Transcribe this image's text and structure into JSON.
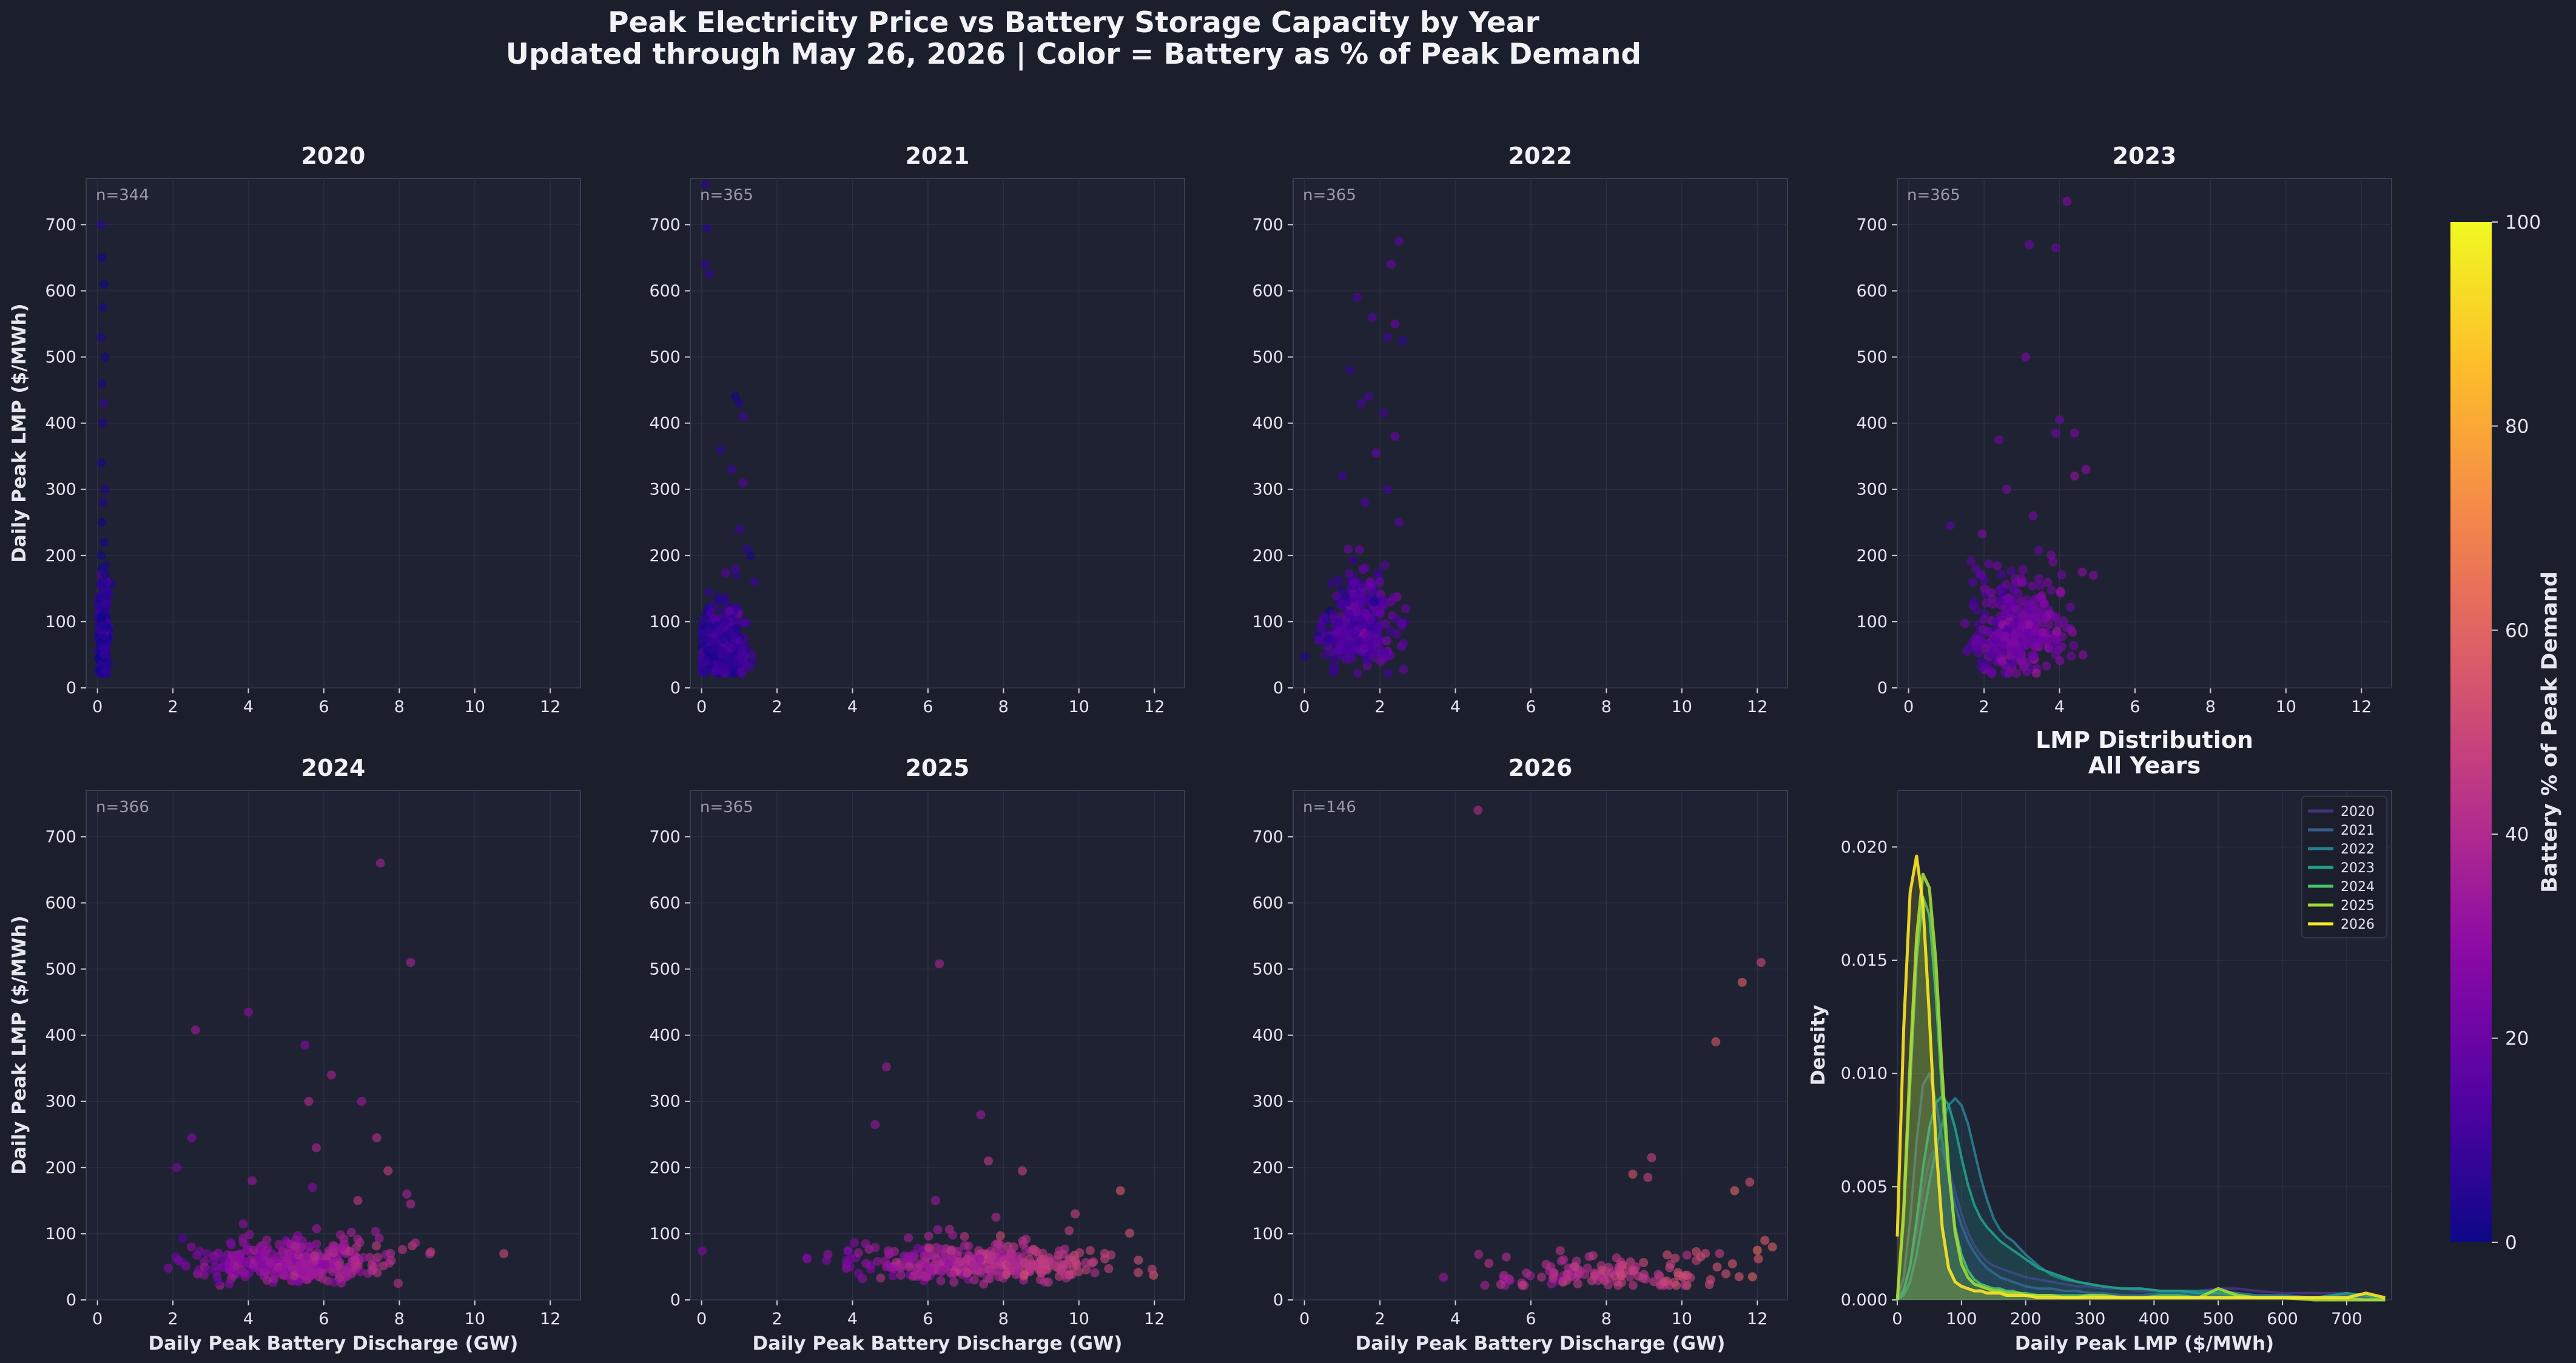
{
  "title": {
    "line1": "Peak Electricity Price vs Battery Storage Capacity by Year",
    "line2": "Updated through May 26, 2026  |  Color = Battery as % of Peak Demand"
  },
  "colors": {
    "background": "#1b1e2b",
    "axes_face": "#1f2233",
    "spine": "#3a3e52",
    "grid": "#2a2e40"
  },
  "chart_data": [
    {
      "type": "scatter",
      "panels": [
        {
          "title": "2020",
          "n_label": "n=344",
          "x_center": 0.15,
          "x_spread": 0.06,
          "y_median": 70,
          "y_spread": 40,
          "pct_center": 5,
          "outliers": [
            [
              0.1,
              700
            ],
            [
              0.12,
              650
            ],
            [
              0.18,
              610
            ],
            [
              0.15,
              575
            ],
            [
              0.1,
              530
            ],
            [
              0.2,
              500
            ],
            [
              0.12,
              460
            ],
            [
              0.16,
              430
            ],
            [
              0.14,
              400
            ],
            [
              0.1,
              340
            ],
            [
              0.2,
              300
            ],
            [
              0.15,
              280
            ],
            [
              0.12,
              250
            ],
            [
              0.18,
              220
            ],
            [
              0.1,
              200
            ],
            [
              0.22,
              185
            ],
            [
              0.15,
              160
            ]
          ]
        },
        {
          "title": "2021",
          "n_label": "n=365",
          "x_center": 0.55,
          "x_spread": 0.3,
          "y_median": 60,
          "y_spread": 30,
          "pct_center": 8,
          "outliers": [
            [
              0.1,
              760
            ],
            [
              0.15,
              695
            ],
            [
              0.1,
              640
            ],
            [
              0.2,
              625
            ],
            [
              0.9,
              440
            ],
            [
              1.0,
              430
            ],
            [
              1.1,
              410
            ],
            [
              0.5,
              360
            ],
            [
              0.8,
              330
            ],
            [
              1.1,
              310
            ],
            [
              1.0,
              240
            ],
            [
              1.2,
              210
            ],
            [
              1.3,
              200
            ],
            [
              0.9,
              180
            ],
            [
              1.4,
              160
            ]
          ]
        },
        {
          "title": "2022",
          "n_label": "n=365",
          "x_center": 1.5,
          "x_spread": 0.45,
          "y_median": 85,
          "y_spread": 40,
          "pct_center": 14,
          "outliers": [
            [
              2.5,
              675
            ],
            [
              2.3,
              640
            ],
            [
              1.4,
              590
            ],
            [
              1.8,
              560
            ],
            [
              2.4,
              550
            ],
            [
              2.2,
              530
            ],
            [
              2.6,
              525
            ],
            [
              1.2,
              480
            ],
            [
              1.7,
              440
            ],
            [
              1.5,
              430
            ],
            [
              2.1,
              415
            ],
            [
              2.4,
              380
            ],
            [
              1.9,
              355
            ],
            [
              1.0,
              320
            ],
            [
              2.2,
              300
            ],
            [
              1.6,
              280
            ],
            [
              2.5,
              250
            ]
          ]
        },
        {
          "title": "2023",
          "n_label": "n=365",
          "x_center": 2.9,
          "x_spread": 0.6,
          "y_median": 85,
          "y_spread": 45,
          "pct_center": 22,
          "outliers": [
            [
              4.2,
              735
            ],
            [
              3.2,
              670
            ],
            [
              3.9,
              665
            ],
            [
              3.1,
              500
            ],
            [
              4.0,
              405
            ],
            [
              4.4,
              385
            ],
            [
              2.4,
              375
            ],
            [
              3.9,
              385
            ],
            [
              4.7,
              330
            ],
            [
              4.4,
              320
            ],
            [
              2.6,
              300
            ],
            [
              3.3,
              260
            ],
            [
              1.1,
              245
            ],
            [
              4.6,
              175
            ],
            [
              4.9,
              170
            ]
          ]
        },
        {
          "title": "2024",
          "n_label": "n=366",
          "x_center": 5.2,
          "x_spread": 1.3,
          "y_median": 55,
          "y_spread": 18,
          "pct_center": 33,
          "outliers": [
            [
              7.5,
              660
            ],
            [
              8.3,
              510
            ],
            [
              4.0,
              435
            ],
            [
              2.6,
              408
            ],
            [
              5.5,
              385
            ],
            [
              6.2,
              340
            ],
            [
              5.6,
              300
            ],
            [
              7.0,
              300
            ],
            [
              2.5,
              245
            ],
            [
              7.4,
              245
            ],
            [
              5.8,
              230
            ],
            [
              2.1,
              200
            ],
            [
              7.7,
              195
            ],
            [
              4.1,
              180
            ],
            [
              5.7,
              170
            ],
            [
              8.2,
              160
            ],
            [
              6.9,
              150
            ],
            [
              8.3,
              145
            ]
          ]
        },
        {
          "title": "2025",
          "n_label": "n=365",
          "x_center": 7.3,
          "x_spread": 1.7,
          "y_median": 55,
          "y_spread": 17,
          "pct_center": 40,
          "outliers": [
            [
              6.3,
              508
            ],
            [
              4.9,
              352
            ],
            [
              7.4,
              280
            ],
            [
              4.6,
              265
            ],
            [
              7.6,
              210
            ],
            [
              8.5,
              195
            ],
            [
              11.1,
              165
            ],
            [
              6.2,
              150
            ],
            [
              9.9,
              130
            ],
            [
              7.8,
              125
            ]
          ]
        },
        {
          "title": "2026",
          "n_label": "n=146",
          "x_center": 8.2,
          "x_spread": 1.6,
          "y_median": 38,
          "y_spread": 14,
          "pct_center": 45,
          "outliers": [
            [
              4.6,
              740
            ],
            [
              12.1,
              510
            ],
            [
              11.6,
              480
            ],
            [
              10.9,
              390
            ],
            [
              9.2,
              215
            ],
            [
              8.7,
              190
            ],
            [
              9.1,
              185
            ],
            [
              11.8,
              178
            ],
            [
              11.4,
              165
            ],
            [
              12.2,
              90
            ],
            [
              12.4,
              80
            ],
            [
              12.0,
              75
            ],
            [
              11.0,
              70
            ],
            [
              10.5,
              65
            ]
          ]
        }
      ],
      "xlabel": "Daily Peak Battery Discharge (GW)",
      "ylabel": "Daily Peak LMP ($/MWh)",
      "xlim": [
        -0.3,
        12.8
      ],
      "ylim": [
        0,
        770
      ],
      "xticks": [
        0,
        2,
        4,
        6,
        8,
        10,
        12
      ],
      "yticks": [
        0,
        100,
        200,
        300,
        400,
        500,
        600,
        700
      ]
    },
    {
      "type": "line",
      "title_line1": "LMP Distribution",
      "title_line2": "All Years",
      "xlabel": "Daily Peak LMP ($/MWh)",
      "ylabel": "Density",
      "xlim": [
        0,
        770
      ],
      "ylim": [
        0,
        0.0225
      ],
      "xticks": [
        0,
        100,
        200,
        300,
        400,
        500,
        600,
        700
      ],
      "yticks": [
        "0.000",
        "0.005",
        "0.010",
        "0.015",
        "0.020"
      ],
      "ytick_values": [
        0,
        0.005,
        0.01,
        0.015,
        0.02
      ],
      "legend_position": "top-right",
      "x": [
        0,
        10,
        20,
        30,
        40,
        50,
        60,
        70,
        80,
        90,
        100,
        110,
        120,
        130,
        140,
        150,
        160,
        170,
        180,
        190,
        200,
        220,
        240,
        260,
        280,
        300,
        320,
        350,
        380,
        410,
        440,
        470,
        500,
        530,
        560,
        600,
        650,
        700,
        730,
        760
      ],
      "series": [
        {
          "name": "2020",
          "color": "#46327e",
          "values": [
            0,
            0.0005,
            0.0015,
            0.003,
            0.0048,
            0.0062,
            0.0068,
            0.0066,
            0.0058,
            0.0048,
            0.0038,
            0.003,
            0.0024,
            0.002,
            0.0017,
            0.0015,
            0.0014,
            0.0013,
            0.0012,
            0.0011,
            0.001,
            0.0009,
            0.0008,
            0.0007,
            0.0006,
            0.0006,
            0.0005,
            0.0005,
            0.0004,
            0.0004,
            0.0004,
            0.0004,
            0.0005,
            0.0005,
            0.0004,
            0.0003,
            0.0003,
            0.0003,
            0.0001,
            0
          ]
        },
        {
          "name": "2021",
          "color": "#365c8d",
          "values": [
            0,
            0.001,
            0.0035,
            0.007,
            0.0095,
            0.01,
            0.0088,
            0.007,
            0.0055,
            0.0042,
            0.0033,
            0.0026,
            0.0021,
            0.0017,
            0.0014,
            0.0012,
            0.001,
            0.0009,
            0.0008,
            0.0007,
            0.0006,
            0.0005,
            0.0005,
            0.0004,
            0.0004,
            0.0003,
            0.0003,
            0.0002,
            0.0002,
            0.0003,
            0.0003,
            0.0002,
            0.0002,
            0.0001,
            0.0001,
            0.0001,
            0.0001,
            0.0002,
            0.0001,
            0
          ]
        },
        {
          "name": "2022",
          "color": "#277f8e",
          "values": [
            0,
            0.0002,
            0.0008,
            0.002,
            0.0036,
            0.0052,
            0.0066,
            0.0078,
            0.0086,
            0.0089,
            0.0086,
            0.0078,
            0.0066,
            0.0054,
            0.0044,
            0.0036,
            0.0031,
            0.0028,
            0.0026,
            0.0023,
            0.002,
            0.0015,
            0.0011,
            0.0009,
            0.0008,
            0.0007,
            0.0006,
            0.0005,
            0.0005,
            0.0004,
            0.0004,
            0.0004,
            0.0004,
            0.0003,
            0.0002,
            0.0002,
            0.0001,
            0.0001,
            0,
            0
          ]
        },
        {
          "name": "2023",
          "color": "#1fa187",
          "values": [
            0,
            0.0004,
            0.0015,
            0.0035,
            0.0058,
            0.0076,
            0.0087,
            0.009,
            0.0086,
            0.0076,
            0.0063,
            0.0051,
            0.0042,
            0.0036,
            0.0032,
            0.0029,
            0.0026,
            0.0024,
            0.0022,
            0.002,
            0.0018,
            0.0014,
            0.0012,
            0.001,
            0.0008,
            0.0007,
            0.0006,
            0.0005,
            0.0005,
            0.0004,
            0.0004,
            0.0003,
            0.0003,
            0.0002,
            0.0001,
            0.0001,
            0.0001,
            0.0003,
            0.0002,
            0
          ]
        },
        {
          "name": "2024",
          "color": "#4ac16d",
          "values": [
            0,
            0.0035,
            0.0095,
            0.015,
            0.0178,
            0.017,
            0.0135,
            0.009,
            0.0055,
            0.0032,
            0.002,
            0.0013,
            0.0009,
            0.0007,
            0.0006,
            0.0005,
            0.0005,
            0.0004,
            0.0004,
            0.0003,
            0.0003,
            0.0002,
            0.0002,
            0.0002,
            0.0002,
            0.0002,
            0.0001,
            0.0001,
            0.0001,
            0.0002,
            0.0002,
            0.0001,
            0.0001,
            0.0001,
            0.0001,
            0.0001,
            0.0001,
            0.0001,
            0,
            0
          ]
        },
        {
          "name": "2025",
          "color": "#a0da39",
          "values": [
            0,
            0.004,
            0.0105,
            0.016,
            0.0188,
            0.0182,
            0.015,
            0.01,
            0.0058,
            0.003,
            0.0016,
            0.001,
            0.0007,
            0.0006,
            0.0005,
            0.0004,
            0.0004,
            0.0003,
            0.0003,
            0.0003,
            0.0002,
            0.0002,
            0.0002,
            0.0001,
            0.0001,
            0.0002,
            0.0002,
            0.0001,
            0.0001,
            0.0001,
            0.0001,
            0.0001,
            0.0005,
            0.0002,
            0.0001,
            0.0001,
            0,
            0,
            0,
            0
          ]
        },
        {
          "name": "2026",
          "color": "#fde725",
          "values": [
            0.0028,
            0.012,
            0.018,
            0.0196,
            0.0175,
            0.0125,
            0.007,
            0.0032,
            0.0014,
            0.0008,
            0.0006,
            0.0005,
            0.0004,
            0.0004,
            0.0003,
            0.0003,
            0.0003,
            0.0002,
            0.0002,
            0.0002,
            0.0002,
            0.0001,
            0.0001,
            0.0001,
            0.0001,
            0.0001,
            0.0001,
            0.0001,
            0.0001,
            0.0001,
            0.0001,
            0.0001,
            0.0001,
            0.0001,
            0.0001,
            0.0001,
            0.0001,
            0.0001,
            0.0003,
            0.0001
          ]
        }
      ]
    }
  ],
  "colorbar": {
    "label": "Battery % of Peak Demand",
    "ticks": [
      0,
      20,
      40,
      60,
      80,
      100
    ],
    "colormap": "plasma",
    "stops": [
      "#0d0887",
      "#5302a3",
      "#8b0aa5",
      "#b83289",
      "#db5c68",
      "#f48849",
      "#febd2a",
      "#f0f921"
    ]
  }
}
